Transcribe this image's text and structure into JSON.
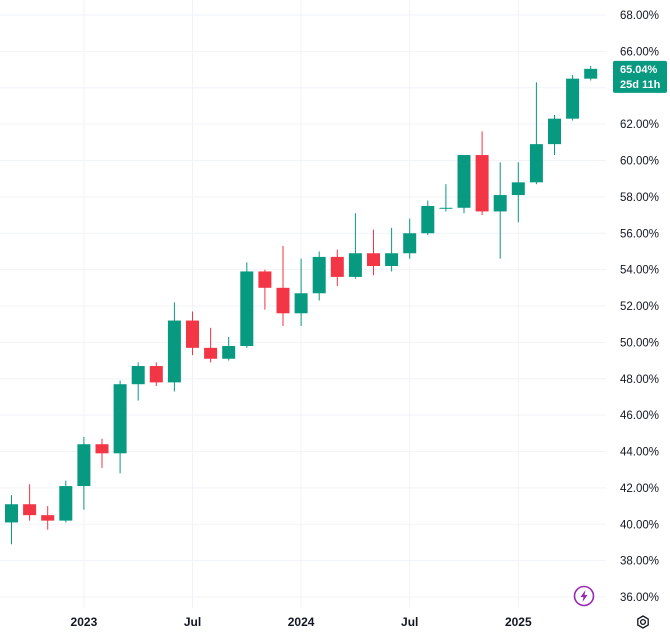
{
  "chart_data": {
    "type": "candlestick",
    "y_unit": "%",
    "ylim": [
      35.5,
      68.8
    ],
    "y_ticks": [
      "36.00%",
      "38.00%",
      "40.00%",
      "42.00%",
      "44.00%",
      "46.00%",
      "48.00%",
      "50.00%",
      "52.00%",
      "54.00%",
      "56.00%",
      "58.00%",
      "60.00%",
      "62.00%",
      "64.00%",
      "66.00%",
      "68.00%"
    ],
    "x_ticks": [
      {
        "label": "2023",
        "date": "2023-01"
      },
      {
        "label": "Jul",
        "date": "2023-07"
      },
      {
        "label": "2024",
        "date": "2024-01"
      },
      {
        "label": "Jul",
        "date": "2024-07"
      },
      {
        "label": "2025",
        "date": "2025-01"
      }
    ],
    "grid": true,
    "colors": {
      "up": "#089981",
      "down": "#f23645",
      "grid": "#f0f3fa",
      "text": "#131722",
      "accent": "#9c27b0"
    },
    "candles": [
      {
        "date": "2022-09",
        "open": 40.1,
        "high": 41.6,
        "low": 38.9,
        "close": 41.1
      },
      {
        "date": "2022-10",
        "open": 41.1,
        "high": 42.2,
        "low": 40.2,
        "close": 40.5
      },
      {
        "date": "2022-11",
        "open": 40.5,
        "high": 41.0,
        "low": 39.7,
        "close": 40.2
      },
      {
        "date": "2022-12",
        "open": 40.2,
        "high": 42.4,
        "low": 40.1,
        "close": 42.1
      },
      {
        "date": "2023-01",
        "open": 42.1,
        "high": 44.8,
        "low": 40.8,
        "close": 44.4
      },
      {
        "date": "2023-02",
        "open": 44.4,
        "high": 44.7,
        "low": 43.1,
        "close": 43.9
      },
      {
        "date": "2023-03",
        "open": 43.9,
        "high": 47.9,
        "low": 42.8,
        "close": 47.7
      },
      {
        "date": "2023-04",
        "open": 47.7,
        "high": 48.9,
        "low": 46.8,
        "close": 48.7
      },
      {
        "date": "2023-05",
        "open": 48.7,
        "high": 48.9,
        "low": 47.6,
        "close": 47.8
      },
      {
        "date": "2023-06",
        "open": 47.8,
        "high": 52.2,
        "low": 47.3,
        "close": 51.2
      },
      {
        "date": "2023-07",
        "open": 51.2,
        "high": 51.7,
        "low": 49.3,
        "close": 49.7
      },
      {
        "date": "2023-08",
        "open": 49.7,
        "high": 50.8,
        "low": 48.9,
        "close": 49.1
      },
      {
        "date": "2023-09",
        "open": 49.1,
        "high": 50.3,
        "low": 49.0,
        "close": 49.8
      },
      {
        "date": "2023-10",
        "open": 49.8,
        "high": 54.4,
        "low": 49.7,
        "close": 53.9
      },
      {
        "date": "2023-11",
        "open": 53.9,
        "high": 54.0,
        "low": 51.8,
        "close": 53.0
      },
      {
        "date": "2023-12",
        "open": 53.0,
        "high": 55.3,
        "low": 50.9,
        "close": 51.6
      },
      {
        "date": "2024-01",
        "open": 51.6,
        "high": 54.6,
        "low": 50.9,
        "close": 52.7
      },
      {
        "date": "2024-02",
        "open": 52.7,
        "high": 55.0,
        "low": 52.3,
        "close": 54.7
      },
      {
        "date": "2024-03",
        "open": 54.7,
        "high": 55.1,
        "low": 53.1,
        "close": 53.6
      },
      {
        "date": "2024-04",
        "open": 53.6,
        "high": 57.1,
        "low": 53.5,
        "close": 54.9
      },
      {
        "date": "2024-05",
        "open": 54.9,
        "high": 56.2,
        "low": 53.7,
        "close": 54.2
      },
      {
        "date": "2024-06",
        "open": 54.2,
        "high": 56.3,
        "low": 53.9,
        "close": 54.9
      },
      {
        "date": "2024-07",
        "open": 54.9,
        "high": 56.8,
        "low": 54.6,
        "close": 56.0
      },
      {
        "date": "2024-08",
        "open": 56.0,
        "high": 57.8,
        "low": 55.9,
        "close": 57.5
      },
      {
        "date": "2024-09",
        "open": 57.4,
        "high": 58.7,
        "low": 57.2,
        "close": 57.4
      },
      {
        "date": "2024-10",
        "open": 57.4,
        "high": 60.3,
        "low": 57.1,
        "close": 60.3
      },
      {
        "date": "2024-11",
        "open": 60.3,
        "high": 61.6,
        "low": 57.0,
        "close": 57.2
      },
      {
        "date": "2024-12",
        "open": 57.2,
        "high": 59.9,
        "low": 54.6,
        "close": 58.1
      },
      {
        "date": "2025-01",
        "open": 58.1,
        "high": 59.9,
        "low": 56.6,
        "close": 58.8
      },
      {
        "date": "2025-02",
        "open": 58.8,
        "high": 64.3,
        "low": 58.7,
        "close": 60.9
      },
      {
        "date": "2025-03",
        "open": 60.9,
        "high": 62.5,
        "low": 60.3,
        "close": 62.3
      },
      {
        "date": "2025-04",
        "open": 62.3,
        "high": 64.7,
        "low": 62.2,
        "close": 64.5
      },
      {
        "date": "2025-05",
        "open": 64.5,
        "high": 65.2,
        "low": 64.4,
        "close": 65.04
      }
    ]
  },
  "last_price": {
    "value_label": "65.04%",
    "countdown": "25d 11h",
    "color": "#089981"
  },
  "controls": {
    "lightning_icon": "lightning-icon",
    "settings_icon": "settings-icon"
  }
}
